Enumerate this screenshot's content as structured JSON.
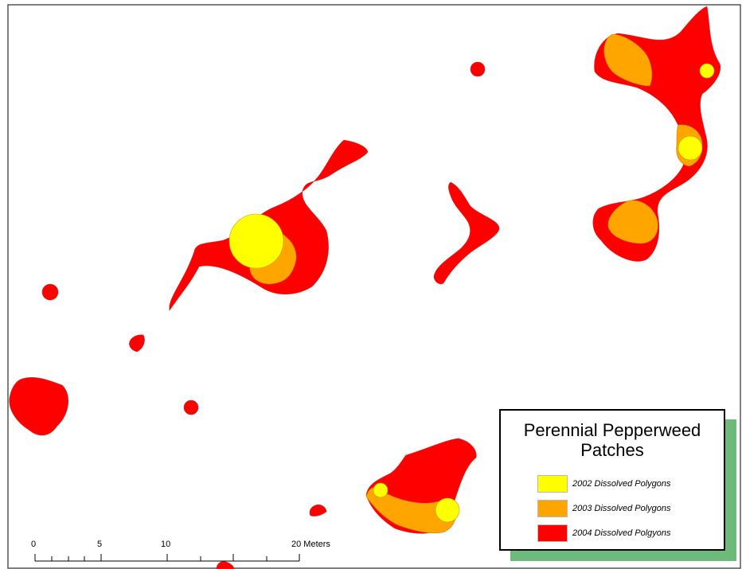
{
  "legend": {
    "title_line1": "Perennial Pepperweed",
    "title_line2": "Patches",
    "items": [
      {
        "label": "2002 Dissolved Polygons",
        "color": "#ffff00"
      },
      {
        "label": "2003 Dissolved Polygons",
        "color": "#ffa500"
      },
      {
        "label": "2004 Dissolved Polgyons",
        "color": "#ff0000"
      }
    ]
  },
  "scale_bar": {
    "labels": [
      "0",
      "5",
      "10",
      "20 Meters"
    ]
  },
  "colors": {
    "patch_2002": "#ffff00",
    "patch_2003": "#ffa500",
    "patch_2004": "#ff0000",
    "legend_shadow": "#6dbb7a",
    "frame": "#555555"
  }
}
